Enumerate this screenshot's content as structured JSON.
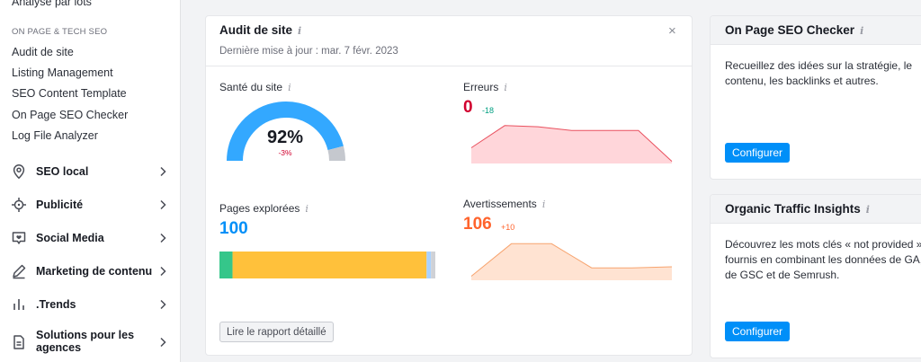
{
  "sidebar": {
    "top_item": "Analyse par lots",
    "section_title": "ON PAGE & TECH SEO",
    "links": [
      "Audit de site",
      "Listing Management",
      "SEO Content Template",
      "On Page SEO Checker",
      "Log File Analyzer"
    ],
    "nav": [
      {
        "label": "SEO local",
        "icon": "location-pin-icon"
      },
      {
        "label": "Publicité",
        "icon": "target-icon"
      },
      {
        "label": "Social Media",
        "icon": "chat-bubble-icon"
      },
      {
        "label": "Marketing de contenu",
        "icon": "pencil-icon"
      },
      {
        "label": ".Trends",
        "icon": "bar-chart-icon"
      },
      {
        "label": "Solutions pour les agences",
        "icon": "document-icon"
      }
    ]
  },
  "audit": {
    "title": "Audit de site",
    "info_glyph": "i",
    "close_glyph": "×",
    "subtitle": "Dernière mise à jour : mar. 7 févr. 2023",
    "health": {
      "label": "Santé du site",
      "value": "92%",
      "delta": "-3%",
      "fraction": 0.92
    },
    "errors": {
      "label": "Erreurs",
      "value": "0",
      "delta": "-18",
      "trend": [
        12,
        30,
        29,
        26,
        26,
        26,
        1
      ]
    },
    "pages": {
      "label": "Pages explorées",
      "value": "100",
      "segments": [
        6,
        89,
        2,
        2
      ],
      "segment_colors": [
        "#35c68a",
        "#ffc13b",
        "#a9d2ff",
        "#cfd1d6"
      ]
    },
    "warnings": {
      "label": "Avertissements",
      "value": "106",
      "delta": "+10",
      "trend": [
        3,
        34,
        34,
        11,
        11,
        12
      ]
    },
    "report_button": "Lire le rapport détaillé"
  },
  "onpage": {
    "title": "On Page SEO Checker",
    "text": "Recueillez des idées sur la stratégie, le contenu, les backlinks et autres.",
    "button": "Configurer"
  },
  "organic": {
    "title": "Organic Traffic Insights",
    "text": "Découvrez les mots clés « not provided » fournis en combinant les données de GA, de GSC et de Semrush.",
    "button": "Configurer"
  },
  "colors": {
    "accent": "#008ff8",
    "error": "#d1002f",
    "warning": "#ff642d",
    "positive": "#009f81",
    "gauge": "#33a8ff",
    "gauge_rest": "#c5c8ce"
  }
}
